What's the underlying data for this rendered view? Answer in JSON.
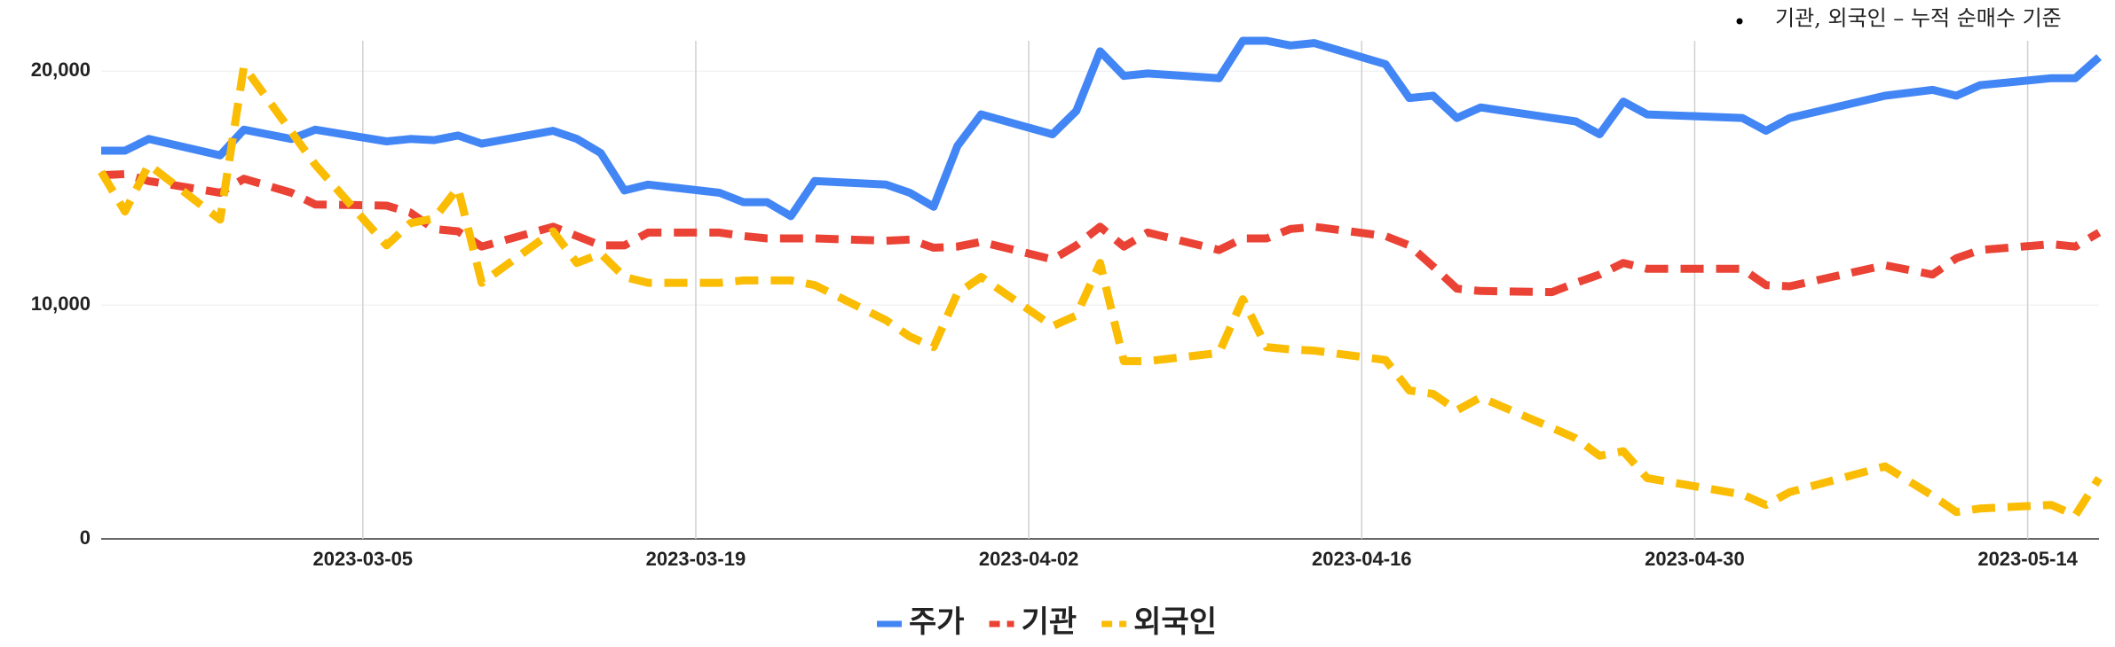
{
  "chart_data": {
    "type": "line",
    "note": "기관, 외국인 – 누적 순매수 기준",
    "x": [
      "2023-02-22",
      "2023-02-23",
      "2023-02-24",
      "2023-02-27",
      "2023-02-28",
      "2023-03-02",
      "2023-03-03",
      "2023-03-06",
      "2023-03-07",
      "2023-03-08",
      "2023-03-09",
      "2023-03-10",
      "2023-03-13",
      "2023-03-14",
      "2023-03-15",
      "2023-03-16",
      "2023-03-17",
      "2023-03-20",
      "2023-03-21",
      "2023-03-22",
      "2023-03-23",
      "2023-03-24",
      "2023-03-27",
      "2023-03-28",
      "2023-03-29",
      "2023-03-30",
      "2023-03-31",
      "2023-04-03",
      "2023-04-04",
      "2023-04-05",
      "2023-04-06",
      "2023-04-07",
      "2023-04-10",
      "2023-04-11",
      "2023-04-12",
      "2023-04-13",
      "2023-04-14",
      "2023-04-17",
      "2023-04-18",
      "2023-04-19",
      "2023-04-20",
      "2023-04-21",
      "2023-04-24",
      "2023-04-25",
      "2023-04-26",
      "2023-04-27",
      "2023-04-28",
      "2023-05-02",
      "2023-05-03",
      "2023-05-04",
      "2023-05-08",
      "2023-05-10",
      "2023-05-11",
      "2023-05-12",
      "2023-05-15",
      "2023-05-16",
      "2023-05-17"
    ],
    "series": [
      {
        "name": "주가",
        "color": "#4285f4",
        "dash": false,
        "values": [
          16600,
          16600,
          17100,
          16400,
          17500,
          17100,
          17500,
          17000,
          17100,
          17050,
          17250,
          16900,
          17450,
          17100,
          16500,
          14900,
          15150,
          14800,
          14400,
          14400,
          13800,
          15300,
          15150,
          14800,
          14200,
          16800,
          18150,
          17300,
          18300,
          20850,
          19800,
          19900,
          19700,
          21300,
          21300,
          21100,
          21200,
          20300,
          18850,
          18950,
          18000,
          18450,
          18000,
          17850,
          17300,
          18700,
          18150,
          18000,
          17450,
          18000,
          18950,
          19200,
          18950,
          19400,
          19700,
          19700,
          20600
        ]
      },
      {
        "name": "기관",
        "color": "#ea4335",
        "dash": true,
        "values": [
          15550,
          15600,
          15300,
          14800,
          15400,
          14800,
          14300,
          14250,
          13950,
          13250,
          13150,
          12500,
          13350,
          12950,
          12550,
          12550,
          13100,
          13100,
          12950,
          12850,
          12850,
          12850,
          12750,
          12800,
          12450,
          12500,
          12700,
          11950,
          12550,
          13350,
          12500,
          13100,
          12350,
          12850,
          12850,
          13250,
          13350,
          12950,
          12550,
          11650,
          10700,
          10600,
          10550,
          10950,
          11300,
          11800,
          11550,
          11550,
          10850,
          10800,
          11700,
          11300,
          12000,
          12350,
          12600,
          12500,
          13100
        ]
      },
      {
        "name": "외국인",
        "color": "#fbbc04",
        "dash": true,
        "values": [
          15700,
          14000,
          16000,
          13650,
          20200,
          17400,
          16000,
          12550,
          13500,
          13700,
          15000,
          10950,
          13150,
          11800,
          12200,
          11200,
          10950,
          10950,
          11050,
          11050,
          11050,
          10850,
          9350,
          8650,
          8200,
          10500,
          11200,
          9100,
          9550,
          11800,
          7600,
          7600,
          7950,
          10250,
          8200,
          8100,
          8050,
          7650,
          6350,
          6200,
          5500,
          6050,
          4750,
          4300,
          3550,
          3750,
          2600,
          1900,
          1450,
          2000,
          3100,
          1850,
          1150,
          1300,
          1450,
          1000,
          2600
        ]
      }
    ],
    "xlim": [
      "2023-02-22",
      "2023-05-17"
    ],
    "xticks": [
      "2023-03-05",
      "2023-03-19",
      "2023-04-02",
      "2023-04-16",
      "2023-04-30",
      "2023-05-14"
    ],
    "ylim": [
      0,
      21300
    ],
    "yticks": [
      0,
      {
        "value": 10000,
        "label": "10,000"
      },
      {
        "value": 20000,
        "label": "20,000"
      }
    ],
    "grid": true,
    "legend": "bottom"
  }
}
